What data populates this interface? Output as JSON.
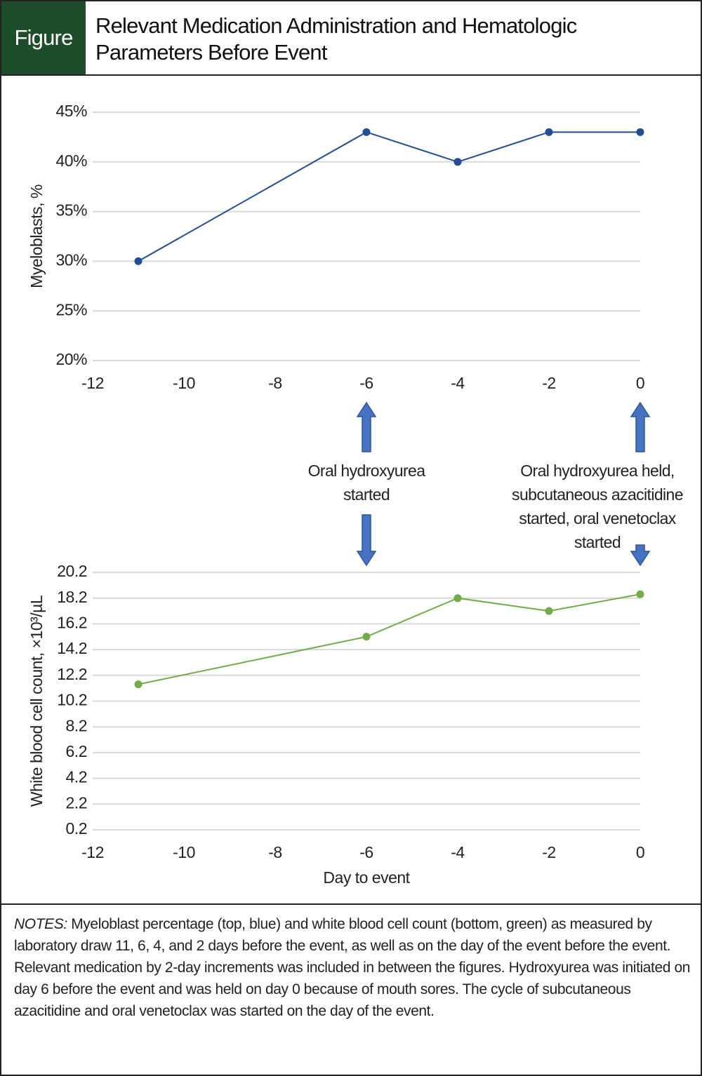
{
  "header": {
    "label": "Figure",
    "title": "Relevant Medication Administration and Hematologic Parameters Before Event"
  },
  "chart_data": [
    {
      "type": "line",
      "y_label": "Myeloblasts, %",
      "x": [
        -11,
        -6,
        -4,
        -2,
        0
      ],
      "series": [
        {
          "name": "Myeloblasts",
          "color": "#1f4e96",
          "values": [
            30,
            43,
            40,
            43,
            43
          ]
        }
      ],
      "xlim": [
        -12,
        0
      ],
      "xticks": [
        -12,
        -10,
        -8,
        -6,
        -4,
        -2,
        0
      ],
      "ylim": [
        20,
        45
      ],
      "yticks": [
        {
          "value": 20,
          "label": "20%"
        },
        {
          "value": 25,
          "label": "25%"
        },
        {
          "value": 30,
          "label": "30%"
        },
        {
          "value": 35,
          "label": "35%"
        },
        {
          "value": 40,
          "label": "40%"
        },
        {
          "value": 45,
          "label": "45%"
        }
      ],
      "grid": true
    },
    {
      "type": "line",
      "y_label": "White blood cell count, ×10³/µL",
      "x_label": "Day to event",
      "x": [
        -11,
        -6,
        -4,
        -2,
        0
      ],
      "series": [
        {
          "name": "White blood cell count",
          "color": "#70ad47",
          "values": [
            11.5,
            15.2,
            18.2,
            17.2,
            18.5
          ]
        }
      ],
      "xlim": [
        -12,
        0
      ],
      "xticks": [
        -12,
        -10,
        -8,
        -6,
        -4,
        -2,
        0
      ],
      "ylim": [
        0.2,
        20.2
      ],
      "yticks": [
        0.2,
        2.2,
        4.2,
        6.2,
        8.2,
        10.2,
        12.2,
        14.2,
        16.2,
        18.2,
        20.2
      ],
      "grid": true
    }
  ],
  "annotations": [
    {
      "x": -6,
      "text": "Oral hydroxyurea started"
    },
    {
      "x": 0,
      "text": "Oral hydroxyurea held, subcutaneous azacitidine started, oral venetoclax started"
    }
  ],
  "notes": {
    "label": "NOTES:",
    "text": "Myeloblast percentage (top, blue) and white blood cell count (bottom, green) as measured by laboratory draw 11, 6, 4, and 2 days before the event, as well as on the day of the event before the event. Relevant medication by 2-day increments was included in between the figures. Hydroxyurea was initiated on day 6 before the event and was held on day 0 because of mouth sores. The cycle of subcutaneous azacitidine and oral venetoclax was started on the day of the event."
  }
}
